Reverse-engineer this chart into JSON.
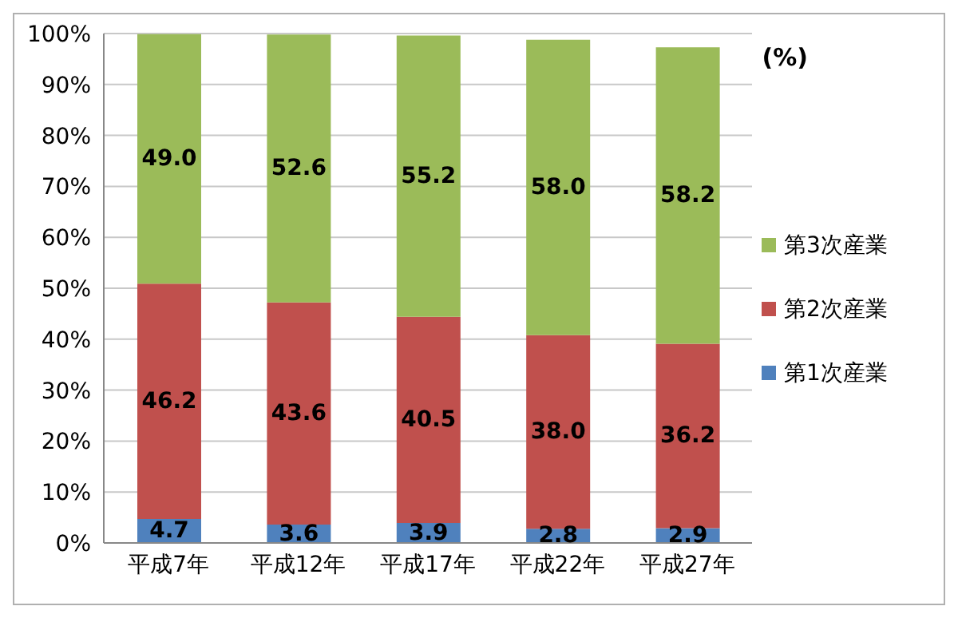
{
  "chart_data": {
    "type": "bar",
    "stacked": true,
    "categories": [
      "平成7年",
      "平成12年",
      "平成17年",
      "平成22年",
      "平成27年"
    ],
    "series": [
      {
        "name": "第1次産業",
        "color": "#4f81bd",
        "values": [
          4.7,
          3.6,
          3.9,
          2.8,
          2.9
        ],
        "value_labels": [
          "4.7",
          "3.6",
          "3.9",
          "2.8",
          "2.9"
        ]
      },
      {
        "name": "第2次産業",
        "color": "#c0504d",
        "values": [
          46.2,
          43.6,
          40.5,
          38.0,
          36.2
        ],
        "value_labels": [
          "46.2",
          "43.6",
          "40.5",
          "38.0",
          "36.2"
        ]
      },
      {
        "name": "第3次産業",
        "color": "#9bbb59",
        "values": [
          49.0,
          52.6,
          55.2,
          58.0,
          58.2
        ],
        "value_labels": [
          "49.0",
          "52.6",
          "55.2",
          "58.0",
          "58.2"
        ]
      }
    ],
    "ylim": [
      0,
      100
    ],
    "yticks": [
      {
        "value": 0,
        "label": "0%"
      },
      {
        "value": 10,
        "label": "10%"
      },
      {
        "value": 20,
        "label": "20%"
      },
      {
        "value": 30,
        "label": "30%"
      },
      {
        "value": 40,
        "label": "40%"
      },
      {
        "value": 50,
        "label": "50%"
      },
      {
        "value": 60,
        "label": "60%"
      },
      {
        "value": 70,
        "label": "70%"
      },
      {
        "value": 80,
        "label": "80%"
      },
      {
        "value": 90,
        "label": "90%"
      },
      {
        "value": 100,
        "label": "100%"
      }
    ],
    "grid": "y",
    "legend": "right",
    "annotations": [
      "(%)"
    ]
  }
}
